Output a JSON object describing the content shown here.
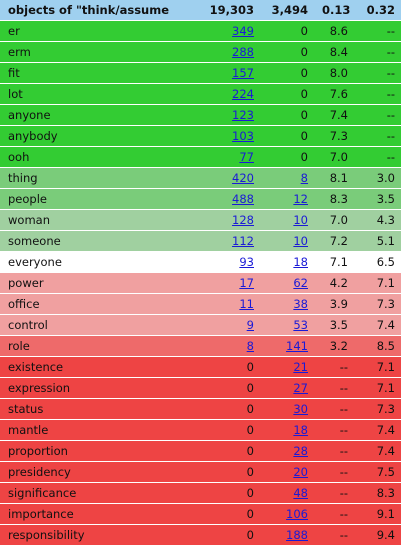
{
  "colors": {
    "header": "#9fd0ef",
    "green_bright": "#33cc33",
    "green_medium": "#7acc7a",
    "green_pale": "#a0d0a0",
    "white": "#ffffff",
    "pink_light": "#f0a0a0",
    "pink_medium": "#ee6a6a",
    "red": "#ee4444"
  },
  "header": {
    "title": "objects of \"think/assume\"",
    "c1": "19,303",
    "c2": "3,494",
    "c3": "0.13",
    "c4": "0.32"
  },
  "rows": [
    {
      "word": "er",
      "c1": "349",
      "c2": "0",
      "c3": "8.6",
      "c4": "--",
      "c1_link": true,
      "c2_link": false,
      "tone": "green_bright"
    },
    {
      "word": "erm",
      "c1": "288",
      "c2": "0",
      "c3": "8.4",
      "c4": "--",
      "c1_link": true,
      "c2_link": false,
      "tone": "green_bright"
    },
    {
      "word": "fit",
      "c1": "157",
      "c2": "0",
      "c3": "8.0",
      "c4": "--",
      "c1_link": true,
      "c2_link": false,
      "tone": "green_bright"
    },
    {
      "word": "lot",
      "c1": "224",
      "c2": "0",
      "c3": "7.6",
      "c4": "--",
      "c1_link": true,
      "c2_link": false,
      "tone": "green_bright"
    },
    {
      "word": "anyone",
      "c1": "123",
      "c2": "0",
      "c3": "7.4",
      "c4": "--",
      "c1_link": true,
      "c2_link": false,
      "tone": "green_bright"
    },
    {
      "word": "anybody",
      "c1": "103",
      "c2": "0",
      "c3": "7.3",
      "c4": "--",
      "c1_link": true,
      "c2_link": false,
      "tone": "green_bright"
    },
    {
      "word": "ooh",
      "c1": "77",
      "c2": "0",
      "c3": "7.0",
      "c4": "--",
      "c1_link": true,
      "c2_link": false,
      "tone": "green_bright"
    },
    {
      "word": "thing",
      "c1": "420",
      "c2": "8",
      "c3": "8.1",
      "c4": "3.0",
      "c1_link": true,
      "c2_link": true,
      "tone": "green_medium"
    },
    {
      "word": "people",
      "c1": "488",
      "c2": "12",
      "c3": "8.3",
      "c4": "3.5",
      "c1_link": true,
      "c2_link": true,
      "tone": "green_medium"
    },
    {
      "word": "woman",
      "c1": "128",
      "c2": "10",
      "c3": "7.0",
      "c4": "4.3",
      "c1_link": true,
      "c2_link": true,
      "tone": "green_pale"
    },
    {
      "word": "someone",
      "c1": "112",
      "c2": "10",
      "c3": "7.2",
      "c4": "5.1",
      "c1_link": true,
      "c2_link": true,
      "tone": "green_pale"
    },
    {
      "word": "everyone",
      "c1": "93",
      "c2": "18",
      "c3": "7.1",
      "c4": "6.5",
      "c1_link": true,
      "c2_link": true,
      "tone": "white"
    },
    {
      "word": "power",
      "c1": "17",
      "c2": "62",
      "c3": "4.2",
      "c4": "7.1",
      "c1_link": true,
      "c2_link": true,
      "tone": "pink_light"
    },
    {
      "word": "office",
      "c1": "11",
      "c2": "38",
      "c3": "3.9",
      "c4": "7.3",
      "c1_link": true,
      "c2_link": true,
      "tone": "pink_light"
    },
    {
      "word": "control",
      "c1": "9",
      "c2": "53",
      "c3": "3.5",
      "c4": "7.4",
      "c1_link": true,
      "c2_link": true,
      "tone": "pink_light"
    },
    {
      "word": "role",
      "c1": "8",
      "c2": "141",
      "c3": "3.2",
      "c4": "8.5",
      "c1_link": true,
      "c2_link": true,
      "tone": "pink_medium"
    },
    {
      "word": "existence",
      "c1": "0",
      "c2": "21",
      "c3": "--",
      "c4": "7.1",
      "c1_link": false,
      "c2_link": true,
      "tone": "red"
    },
    {
      "word": "expression",
      "c1": "0",
      "c2": "27",
      "c3": "--",
      "c4": "7.1",
      "c1_link": false,
      "c2_link": true,
      "tone": "red"
    },
    {
      "word": "status",
      "c1": "0",
      "c2": "30",
      "c3": "--",
      "c4": "7.3",
      "c1_link": false,
      "c2_link": true,
      "tone": "red"
    },
    {
      "word": "mantle",
      "c1": "0",
      "c2": "18",
      "c3": "--",
      "c4": "7.4",
      "c1_link": false,
      "c2_link": true,
      "tone": "red"
    },
    {
      "word": "proportion",
      "c1": "0",
      "c2": "28",
      "c3": "--",
      "c4": "7.4",
      "c1_link": false,
      "c2_link": true,
      "tone": "red"
    },
    {
      "word": "presidency",
      "c1": "0",
      "c2": "20",
      "c3": "--",
      "c4": "7.5",
      "c1_link": false,
      "c2_link": true,
      "tone": "red"
    },
    {
      "word": "significance",
      "c1": "0",
      "c2": "48",
      "c3": "--",
      "c4": "8.3",
      "c1_link": false,
      "c2_link": true,
      "tone": "red"
    },
    {
      "word": "importance",
      "c1": "0",
      "c2": "106",
      "c3": "--",
      "c4": "9.1",
      "c1_link": false,
      "c2_link": true,
      "tone": "red"
    },
    {
      "word": "responsibility",
      "c1": "0",
      "c2": "188",
      "c3": "--",
      "c4": "9.4",
      "c1_link": false,
      "c2_link": true,
      "tone": "red"
    }
  ]
}
